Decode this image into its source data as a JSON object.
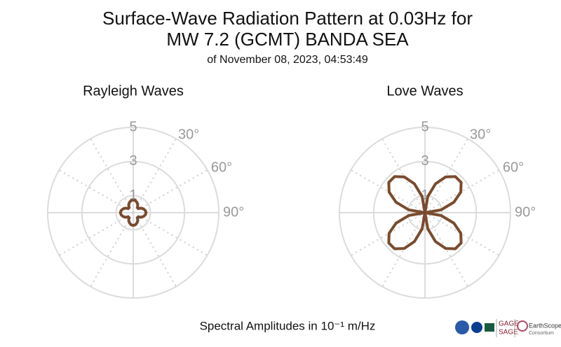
{
  "header": {
    "title_line1": "Surface-Wave Radiation Pattern at 0.03Hz for",
    "title_line2": "MW 7.2 (GCMT) BANDA SEA",
    "subtitle": "of November 08, 2023, 04:53:49"
  },
  "chart_data": [
    {
      "type": "polar",
      "title": "Rayleigh Waves",
      "color": "#7a4b2e",
      "theta": [
        0,
        10,
        20,
        30,
        40,
        50,
        60,
        70,
        80,
        90,
        100,
        110,
        120,
        130,
        140,
        150,
        160,
        170,
        180,
        190,
        200,
        210,
        220,
        230,
        240,
        250,
        260,
        270,
        280,
        290,
        300,
        310,
        320,
        330,
        340,
        350,
        360
      ],
      "values": [
        0.75,
        0.72,
        0.64,
        0.53,
        0.38,
        0.38,
        0.53,
        0.64,
        0.72,
        0.75,
        0.72,
        0.64,
        0.53,
        0.38,
        0.38,
        0.53,
        0.64,
        0.72,
        0.75,
        0.72,
        0.64,
        0.53,
        0.38,
        0.38,
        0.53,
        0.64,
        0.72,
        0.75,
        0.72,
        0.64,
        0.53,
        0.38,
        0.38,
        0.53,
        0.64,
        0.72,
        0.75
      ],
      "rlim": [
        0,
        5
      ],
      "rticks": [
        1,
        3,
        5
      ],
      "thetaticks": [
        {
          "value": 30,
          "label": "30°"
        },
        {
          "value": 60,
          "label": "60°"
        },
        {
          "value": 90,
          "label": "90°"
        }
      ]
    },
    {
      "type": "polar",
      "title": "Love Waves",
      "color": "#7a4b2e",
      "theta": [
        0,
        10,
        20,
        30,
        40,
        50,
        60,
        70,
        80,
        90,
        100,
        110,
        120,
        130,
        140,
        150,
        160,
        170,
        180,
        190,
        200,
        210,
        220,
        230,
        240,
        250,
        260,
        270,
        280,
        290,
        300,
        310,
        320,
        330,
        340,
        350,
        360
      ],
      "values": [
        0,
        0.96,
        1.8,
        2.42,
        2.76,
        2.76,
        2.42,
        1.8,
        0.96,
        0,
        0.96,
        1.8,
        2.42,
        2.76,
        2.76,
        2.42,
        1.8,
        0.96,
        0,
        0.96,
        1.8,
        2.42,
        2.76,
        2.76,
        2.42,
        1.8,
        0.96,
        0,
        0.96,
        1.8,
        2.42,
        2.76,
        2.76,
        2.42,
        1.8,
        0.96,
        0
      ],
      "rlim": [
        0,
        5
      ],
      "rticks": [
        1,
        3,
        5
      ],
      "thetaticks": [
        {
          "value": 30,
          "label": "30°"
        },
        {
          "value": 60,
          "label": "60°"
        },
        {
          "value": 90,
          "label": "90°"
        }
      ]
    }
  ],
  "footer": {
    "caption": "Spectral Amplitudes in 10⁻¹ m/Hz",
    "logo_gage": "GAGE",
    "logo_sage": "SAGE",
    "logo_earthscope": "EarthScope",
    "logo_consortium": "Consortium"
  }
}
